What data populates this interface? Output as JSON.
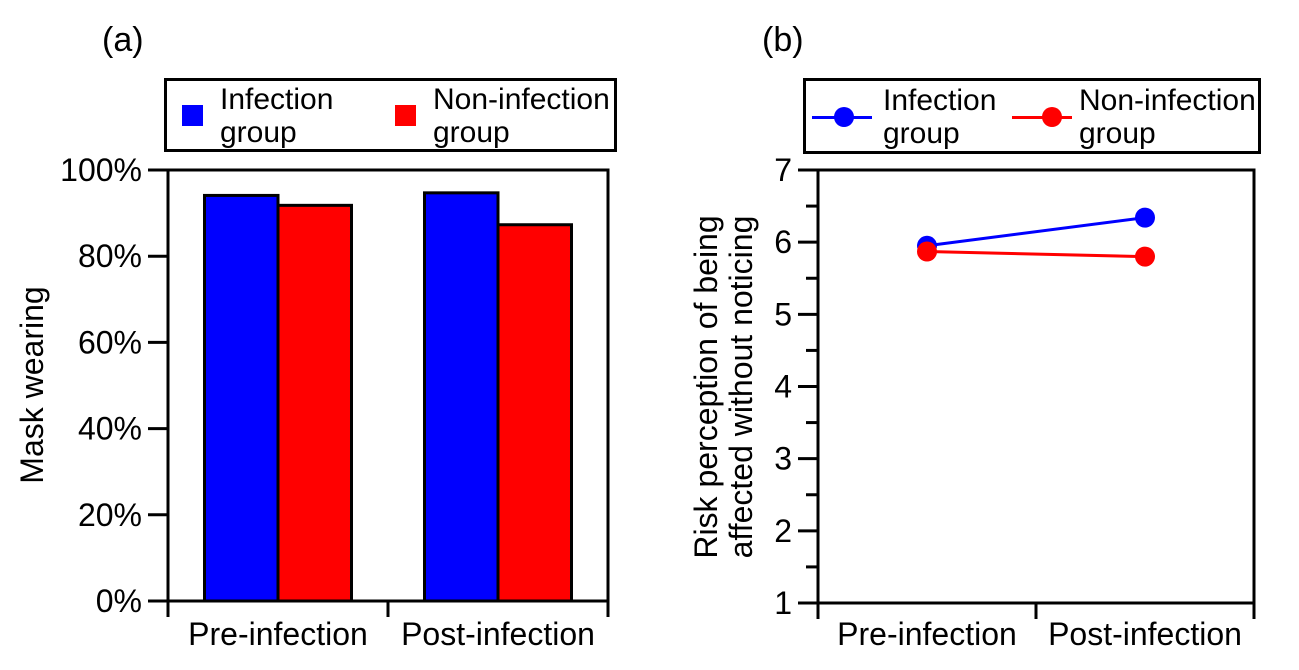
{
  "figure": {
    "background": "#ffffff",
    "panels": [
      {
        "label": "(a)",
        "ylabel": "Mask wearing",
        "legend": {
          "items": [
            {
              "line1": "Infection",
              "line2": "group",
              "marker": "square"
            },
            {
              "line1": "Non-infection",
              "line2": "group",
              "marker": "square"
            }
          ]
        }
      },
      {
        "label": "(b)",
        "ylabel_line1": "Risk perception of being",
        "ylabel_line2": "affected without noticing",
        "legend": {
          "items": [
            {
              "line1": "Infection",
              "line2": "group",
              "marker": "line-circle"
            },
            {
              "line1": "Non-infection",
              "line2": "group",
              "marker": "line-circle"
            }
          ]
        }
      }
    ]
  },
  "chart_data": [
    {
      "type": "bar",
      "title": "(a)",
      "categories": [
        "Pre-infection",
        "Post-infection"
      ],
      "series": [
        {
          "name": "Infection group",
          "color": "#0000FF",
          "values": [
            94.1,
            94.7
          ]
        },
        {
          "name": "Non-infection group",
          "color": "#FF0000",
          "values": [
            91.8,
            87.3
          ]
        }
      ],
      "xlabel": "",
      "ylabel": "Mask wearing",
      "ylim": [
        0,
        100
      ],
      "yticks": [
        {
          "value": 0,
          "label": "0%"
        },
        {
          "value": 20,
          "label": "20%"
        },
        {
          "value": 40,
          "label": "40%"
        },
        {
          "value": 60,
          "label": "60%"
        },
        {
          "value": 80,
          "label": "80%"
        },
        {
          "value": 100,
          "label": "100%"
        }
      ],
      "grid": false,
      "legend_position": "top"
    },
    {
      "type": "line",
      "title": "(b)",
      "categories": [
        "Pre-infection",
        "Post-infection"
      ],
      "series": [
        {
          "name": "Infection group",
          "color": "#0000FF",
          "values": [
            5.95,
            6.34
          ]
        },
        {
          "name": "Non-infection group",
          "color": "#FF0000",
          "values": [
            5.87,
            5.8
          ]
        }
      ],
      "xlabel": "",
      "ylabel": "Risk perception of being affected without noticing",
      "ylim": [
        1,
        7
      ],
      "yticks": [
        {
          "value": 1,
          "label": "1"
        },
        {
          "value": 2,
          "label": "2"
        },
        {
          "value": 3,
          "label": "3"
        },
        {
          "value": 4,
          "label": "4"
        },
        {
          "value": 5,
          "label": "5"
        },
        {
          "value": 6,
          "label": "6"
        },
        {
          "value": 7,
          "label": "7"
        }
      ],
      "minor_yticks": [
        1.5,
        2.5,
        3.5,
        4.5,
        5.5,
        6.5
      ],
      "grid": false,
      "legend_position": "top"
    }
  ]
}
